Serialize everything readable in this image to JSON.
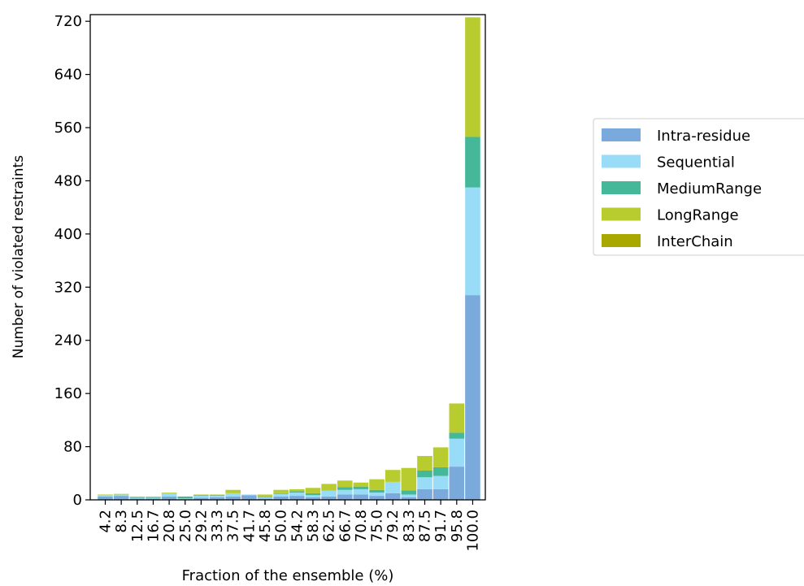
{
  "chart_data": {
    "type": "bar",
    "stacked": true,
    "xlabel": "Fraction of the ensemble (%)",
    "ylabel": "Number of violated restraints",
    "ylim": [
      0,
      730
    ],
    "yticks": [
      0,
      80,
      160,
      240,
      320,
      400,
      480,
      560,
      640,
      720
    ],
    "categories": [
      "4.2",
      "8.3",
      "12.5",
      "16.7",
      "20.8",
      "25.0",
      "29.2",
      "33.3",
      "37.5",
      "41.7",
      "45.8",
      "50.0",
      "54.2",
      "58.3",
      "62.5",
      "66.7",
      "70.8",
      "75.0",
      "79.2",
      "83.3",
      "87.5",
      "91.7",
      "95.8",
      "100.0"
    ],
    "legend_position": "right",
    "series": [
      {
        "name": "Intra-residue",
        "color": "#7aaadc",
        "values": [
          5,
          6,
          2,
          2,
          5,
          1,
          3,
          4,
          5,
          7,
          2,
          5,
          6,
          4,
          5,
          8,
          8,
          6,
          10,
          4,
          16,
          16,
          50,
          308
        ]
      },
      {
        "name": "Sequential",
        "color": "#99dcf8",
        "values": [
          2,
          2,
          1,
          1,
          5,
          1,
          3,
          2,
          5,
          1,
          2,
          4,
          5,
          3,
          9,
          7,
          8,
          5,
          17,
          4,
          18,
          20,
          42,
          162
        ]
      },
      {
        "name": "MediumRange",
        "color": "#44b898",
        "values": [
          0,
          0,
          1,
          1,
          0,
          3,
          1,
          1,
          0,
          0,
          1,
          1,
          2,
          3,
          0,
          4,
          4,
          4,
          0,
          6,
          10,
          13,
          9,
          76
        ]
      },
      {
        "name": "LongRange",
        "color": "#b8cc30",
        "values": [
          1,
          1,
          1,
          1,
          1,
          0,
          1,
          1,
          5,
          0,
          3,
          5,
          3,
          8,
          10,
          10,
          6,
          16,
          18,
          34,
          22,
          30,
          44,
          180
        ]
      },
      {
        "name": "InterChain",
        "color": "#a8a800",
        "values": [
          0,
          0,
          0,
          0,
          0,
          0,
          0,
          0,
          0,
          0,
          0,
          0,
          0,
          0,
          0,
          0,
          0,
          0,
          0,
          0,
          0,
          0,
          0,
          0
        ]
      }
    ]
  }
}
